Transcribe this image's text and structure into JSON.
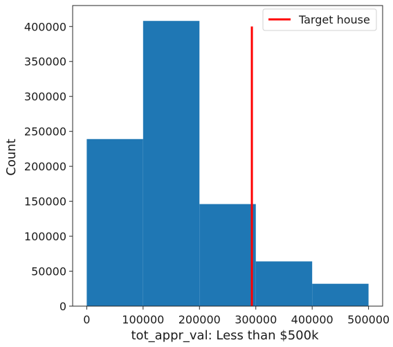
{
  "chart_data": {
    "type": "bar",
    "subtype": "histogram",
    "xlabel": "tot_appr_val: Less than $500k",
    "ylabel": "Count",
    "xlim": [
      -25000,
      525000
    ],
    "ylim": [
      0,
      430000
    ],
    "bins": [
      {
        "x0": 0,
        "x1": 100000,
        "count": 239000
      },
      {
        "x0": 100000,
        "x1": 200000,
        "count": 408000
      },
      {
        "x0": 200000,
        "x1": 300000,
        "count": 146000
      },
      {
        "x0": 300000,
        "x1": 400000,
        "count": 64000
      },
      {
        "x0": 400000,
        "x1": 500000,
        "count": 32000
      }
    ],
    "bar_color": "#1f77b4",
    "xticks": [
      0,
      100000,
      200000,
      300000,
      400000,
      500000
    ],
    "xtick_labels": [
      "0",
      "100000",
      "200000",
      "300000",
      "400000",
      "500000"
    ],
    "yticks": [
      0,
      50000,
      100000,
      150000,
      200000,
      250000,
      300000,
      350000,
      400000
    ],
    "ytick_labels": [
      "0",
      "50000",
      "100000",
      "150000",
      "200000",
      "250000",
      "300000",
      "350000",
      "400000"
    ],
    "target_line": {
      "label": "Target house",
      "x": 293000,
      "y_range": [
        0,
        400000
      ],
      "color": "#ff0000"
    },
    "legend_position": "top-right",
    "grid": false
  }
}
